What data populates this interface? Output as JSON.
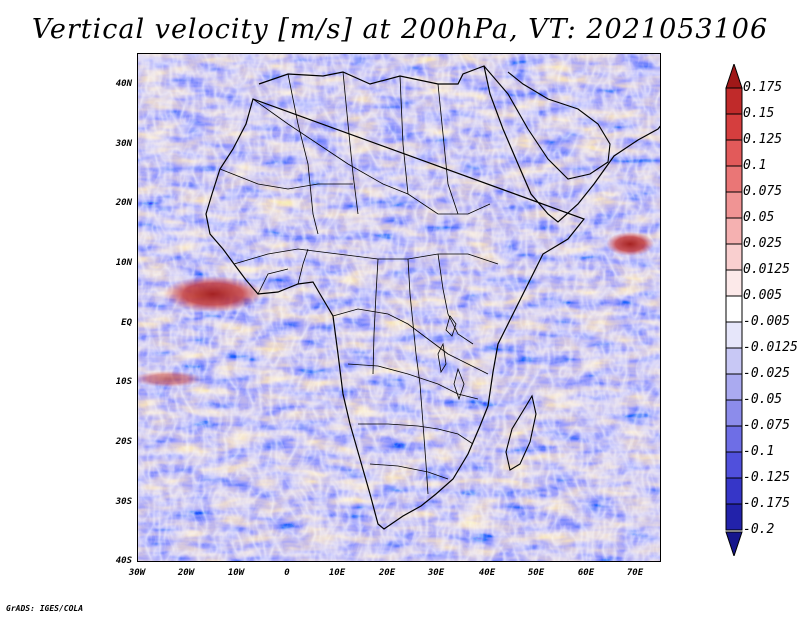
{
  "title": "Vertical velocity [m/s] at 200hPa, VT: 2021053106",
  "credit": "GrADS: IGES/COLA",
  "map": {
    "region": "Africa",
    "lat_labels": [
      "40N",
      "30N",
      "20N",
      "10N",
      "EQ",
      "10S",
      "20S",
      "30S",
      "40S"
    ],
    "lon_labels": [
      "30W",
      "20W",
      "10W",
      "0",
      "10E",
      "20E",
      "30E",
      "40E",
      "50E",
      "60E",
      "70E"
    ]
  },
  "colorbar": {
    "labels": [
      "0.175",
      "0.15",
      "0.125",
      "0.1",
      "0.075",
      "0.05",
      "0.025",
      "0.0125",
      "0.005",
      "-0.005",
      "-0.0125",
      "-0.025",
      "-0.05",
      "-0.075",
      "-0.1",
      "-0.125",
      "-0.175",
      "-0.2"
    ],
    "colors": [
      "#a01818",
      "#c02a2a",
      "#d53e3e",
      "#e25a5a",
      "#ea7676",
      "#f09494",
      "#f5b1b1",
      "#f9cfcf",
      "#fce9e9",
      "#ffffff",
      "#e6e6fa",
      "#c8c8f5",
      "#aaaaf0",
      "#8c8ceb",
      "#6e6ee6",
      "#5050dc",
      "#3636c8",
      "#2222aa",
      "#16168c"
    ]
  }
}
